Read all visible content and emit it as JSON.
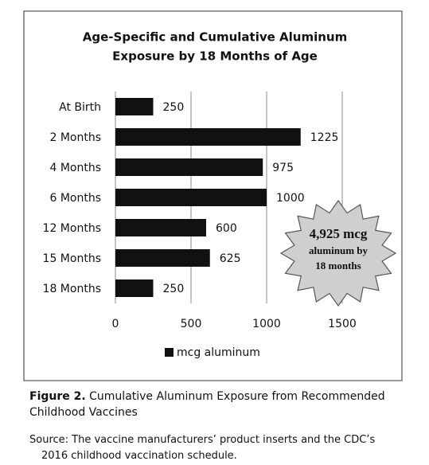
{
  "chart_data": {
    "type": "bar",
    "orientation": "horizontal",
    "title": [
      "Age-Specific and Cumulative Aluminum",
      "Exposure by 18 Months of Age"
    ],
    "categories": [
      "At Birth",
      "2 Months",
      "4 Months",
      "6 Months",
      "12 Months",
      "15 Months",
      "18 Months"
    ],
    "series": [
      {
        "name": "mcg aluminum",
        "color": "#111111",
        "values": [
          250,
          1225,
          975,
          1000,
          600,
          625,
          250
        ]
      }
    ],
    "xlim": [
      0,
      1500
    ],
    "xticks": [
      0,
      500,
      1000,
      1500
    ],
    "grid": true,
    "legend": "bottom",
    "annotation": [
      "4,925 mcg",
      "aluminum by",
      "18 months"
    ]
  },
  "caption": {
    "label": "Figure 2.",
    "text": "Cumulative Aluminum Exposure from Recommended Childhood Vaccines"
  },
  "source": "Source: The vaccine manufacturers’ product inserts and the CDC’s 2016 childhood vaccination schedule."
}
